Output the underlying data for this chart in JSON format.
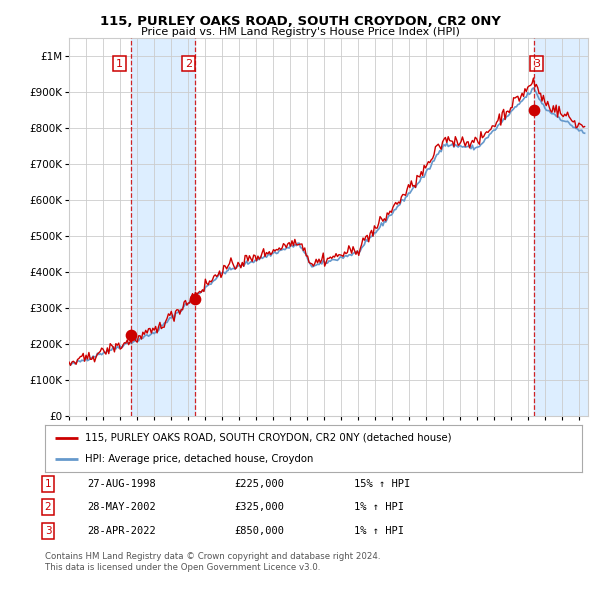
{
  "title": "115, PURLEY OAKS ROAD, SOUTH CROYDON, CR2 0NY",
  "subtitle": "Price paid vs. HM Land Registry's House Price Index (HPI)",
  "sale_year_nums": [
    1998.664,
    2002.412,
    2022.328
  ],
  "sale_prices": [
    225000,
    325000,
    850000
  ],
  "sale_labels": [
    "1",
    "2",
    "3"
  ],
  "legend_line1": "115, PURLEY OAKS ROAD, SOUTH CROYDON, CR2 0NY (detached house)",
  "legend_line2": "HPI: Average price, detached house, Croydon",
  "table_rows": [
    [
      "1",
      "27-AUG-1998",
      "£225,000",
      "15% ↑ HPI"
    ],
    [
      "2",
      "28-MAY-2002",
      "£325,000",
      "1% ↑ HPI"
    ],
    [
      "3",
      "28-APR-2022",
      "£850,000",
      "1% ↑ HPI"
    ]
  ],
  "footer": "Contains HM Land Registry data © Crown copyright and database right 2024.\nThis data is licensed under the Open Government Licence v3.0.",
  "red_color": "#cc0000",
  "blue_color": "#6699cc",
  "shade_color": "#ddeeff",
  "bg_color": "#ffffff",
  "grid_color": "#cccccc",
  "ylim": [
    0,
    1050000
  ],
  "xlim_start": 1995.0,
  "xlim_end": 2025.5,
  "yticks": [
    0,
    100000,
    200000,
    300000,
    400000,
    500000,
    600000,
    700000,
    800000,
    900000,
    1000000
  ],
  "ytick_labels": [
    "£0",
    "£100K",
    "£200K",
    "£300K",
    "£400K",
    "£500K",
    "£600K",
    "£700K",
    "£800K",
    "£900K",
    "£1M"
  ]
}
